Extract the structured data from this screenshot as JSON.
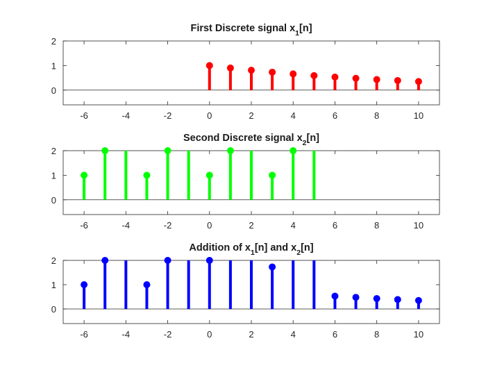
{
  "chart_data": [
    {
      "type": "stem",
      "title": "First Discrete signal x",
      "title_sub": "1",
      "title_suffix": "[n]",
      "color": "#ff0000",
      "xlim": [
        -7,
        11
      ],
      "ylim": [
        -0.6,
        2
      ],
      "xticks": [
        -6,
        -4,
        -2,
        0,
        2,
        4,
        6,
        8,
        10
      ],
      "yticks": [
        0,
        1,
        2
      ],
      "x": [
        0,
        1,
        2,
        3,
        4,
        5,
        6,
        7,
        8,
        9,
        10
      ],
      "y": [
        1.0,
        0.9,
        0.81,
        0.73,
        0.66,
        0.59,
        0.53,
        0.48,
        0.43,
        0.39,
        0.35
      ],
      "marker": [
        true,
        true,
        true,
        true,
        true,
        true,
        true,
        true,
        true,
        true,
        true
      ]
    },
    {
      "type": "stem",
      "title": "Second Discrete signal x",
      "title_sub": "2",
      "title_suffix": "[n]",
      "color": "#00ff00",
      "xlim": [
        -7,
        11
      ],
      "ylim": [
        -0.6,
        2
      ],
      "xticks": [
        -6,
        -4,
        -2,
        0,
        2,
        4,
        6,
        8,
        10
      ],
      "yticks": [
        0,
        1,
        2
      ],
      "x": [
        -6,
        -5,
        -4,
        -3,
        -2,
        -1,
        0,
        1,
        2,
        3,
        4,
        5
      ],
      "y": [
        1,
        2,
        2,
        1,
        2,
        2,
        1,
        2,
        2,
        1,
        2,
        2
      ],
      "marker": [
        true,
        true,
        false,
        true,
        true,
        false,
        true,
        true,
        false,
        true,
        true,
        false
      ]
    },
    {
      "type": "stem",
      "title": "Addition of x",
      "title_sub": "1",
      "title_mid": "[n] and x",
      "title_sub2": "2",
      "title_suffix": "[n]",
      "color": "#0000ff",
      "xlim": [
        -7,
        11
      ],
      "ylim": [
        -0.6,
        2
      ],
      "xticks": [
        -6,
        -4,
        -2,
        0,
        2,
        4,
        6,
        8,
        10
      ],
      "yticks": [
        0,
        1,
        2
      ],
      "x": [
        -6,
        -5,
        -4,
        -3,
        -2,
        -1,
        0,
        1,
        2,
        3,
        4,
        5,
        6,
        7,
        8,
        9,
        10
      ],
      "y": [
        1,
        2,
        2,
        1,
        2,
        2,
        2,
        2,
        2,
        1.73,
        2,
        2,
        0.53,
        0.48,
        0.43,
        0.39,
        0.35
      ],
      "marker": [
        true,
        true,
        false,
        true,
        true,
        false,
        true,
        false,
        false,
        true,
        false,
        false,
        true,
        true,
        true,
        true,
        true
      ]
    }
  ]
}
